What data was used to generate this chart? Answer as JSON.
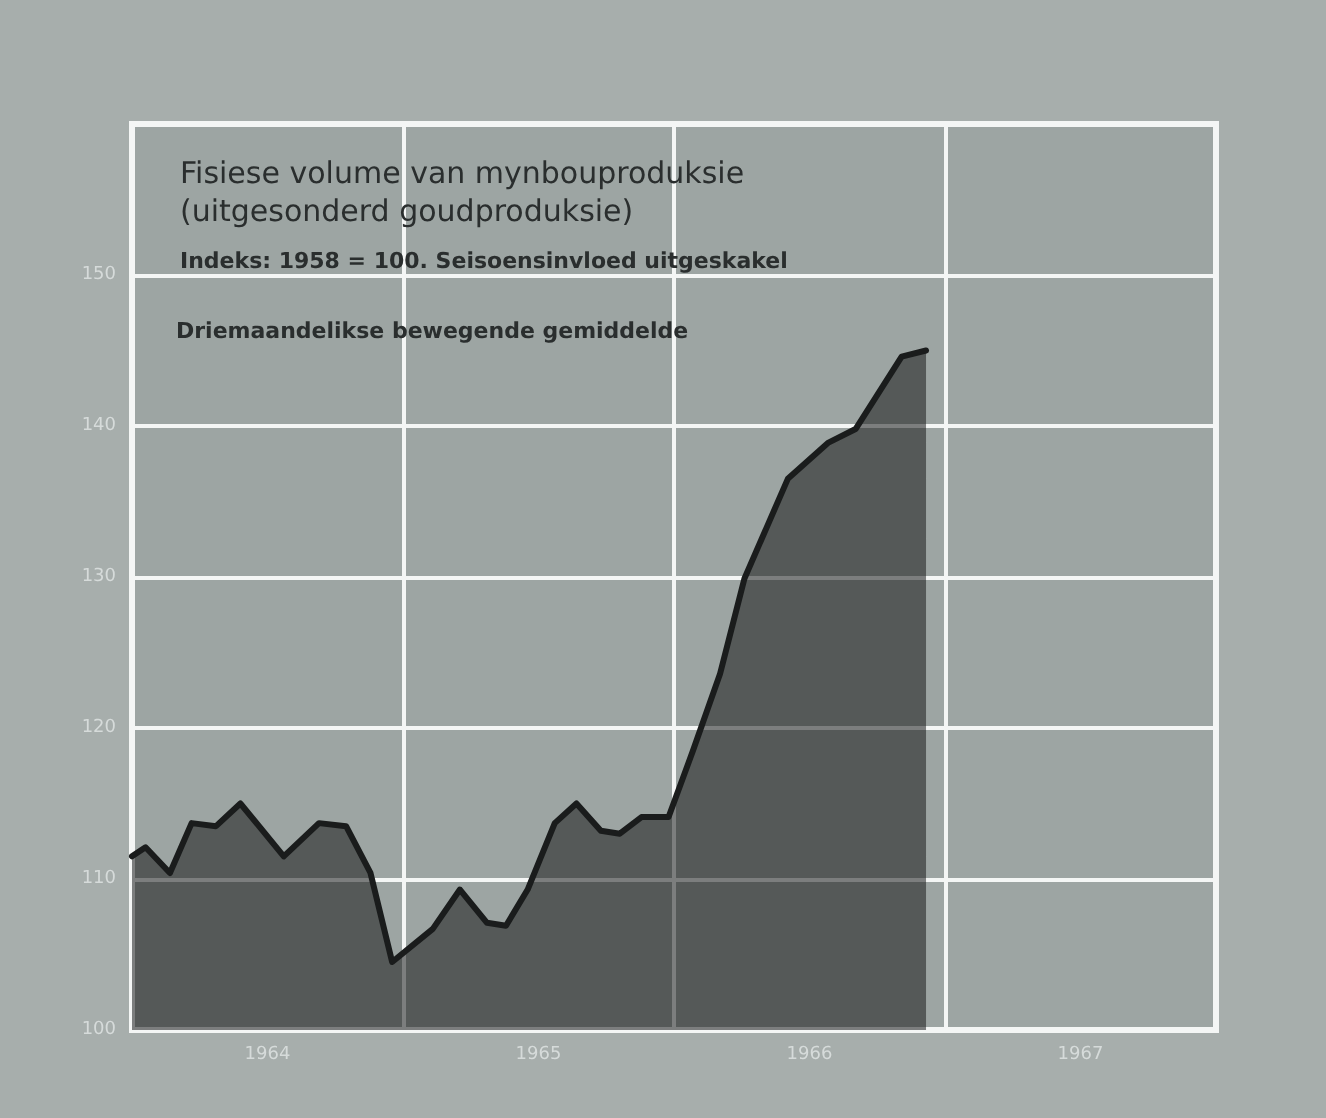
{
  "chart_data": {
    "type": "area",
    "title": "Fisiese volume van mynbouproduksie\n(uitgesonderd goudproduksie)",
    "subtitle": "Indeks: 1958 = 100. Seisoensinvloed uitgeskakel",
    "annotations": [
      "Driemaandelikse bewegende gemiddelde"
    ],
    "x": [
      1964.0,
      1964.05,
      1964.14,
      1964.22,
      1964.31,
      1964.4,
      1964.56,
      1964.69,
      1964.79,
      1964.88,
      1964.96,
      1965.11,
      1965.21,
      1965.31,
      1965.38,
      1965.46,
      1965.56,
      1965.64,
      1965.73,
      1965.8,
      1965.88,
      1965.98,
      1966.07,
      1966.17,
      1966.26,
      1966.42,
      1966.57,
      1966.67,
      1966.84,
      1966.93
    ],
    "series": [
      {
        "color": "#1a1c1c",
        "values": [
          111.5,
          112.1,
          110.4,
          113.7,
          113.5,
          115.0,
          111.5,
          113.7,
          113.5,
          110.4,
          104.5,
          106.7,
          109.3,
          107.1,
          106.9,
          109.3,
          113.7,
          115.0,
          113.2,
          113.0,
          114.1,
          114.1,
          118.5,
          123.6,
          129.9,
          136.5,
          138.9,
          139.8,
          144.6,
          145.0
        ]
      }
    ],
    "xlim": [
      1964,
      1968
    ],
    "xticks": [
      {
        "value": 1964,
        "label": null
      },
      {
        "value": 1964.5,
        "label": "1964"
      },
      {
        "value": 1965,
        "label": null
      },
      {
        "value": 1965.5,
        "label": "1965"
      },
      {
        "value": 1966,
        "label": null
      },
      {
        "value": 1966.5,
        "label": "1966"
      },
      {
        "value": 1967,
        "label": null
      },
      {
        "value": 1967.5,
        "label": "1967"
      },
      {
        "value": 1968,
        "label": null
      }
    ],
    "ylim": [
      100,
      160
    ],
    "yticks": [
      100,
      110,
      120,
      130,
      140,
      150
    ],
    "grid": true,
    "marker": "none",
    "line_style": "solid"
  }
}
